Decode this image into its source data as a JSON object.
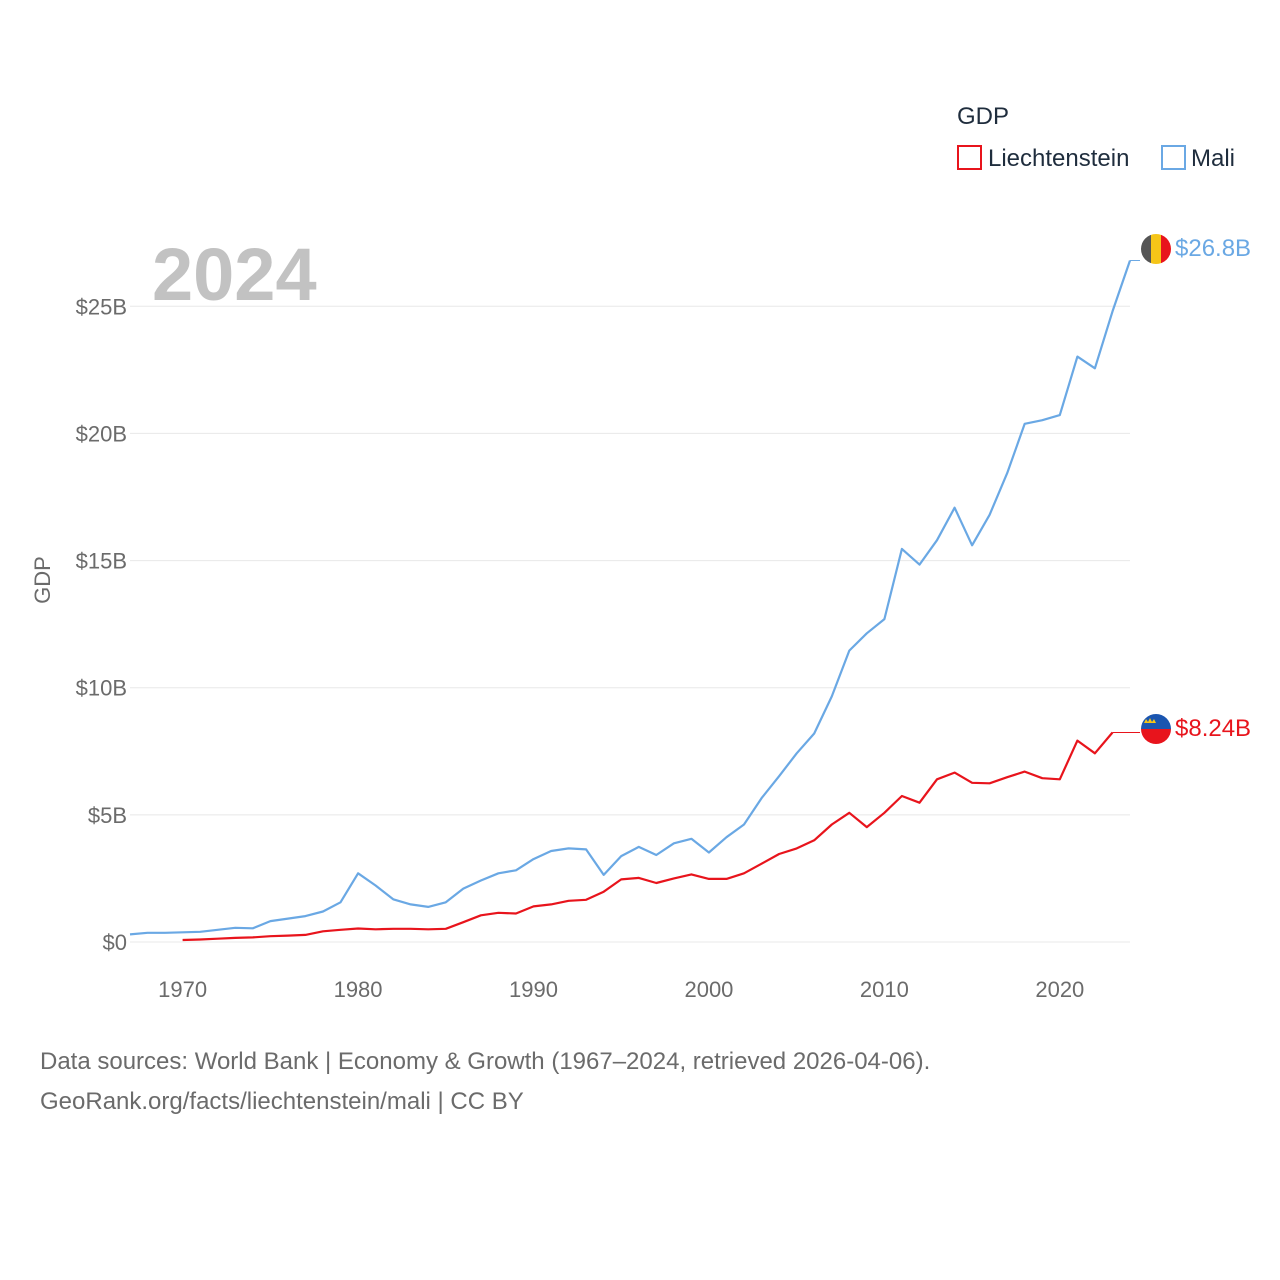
{
  "chart_data": {
    "type": "line",
    "title": "GDP",
    "ylabel": "GDP",
    "xlabel": "",
    "year_label": "2024",
    "xlim": [
      1967,
      2024
    ],
    "ylim": [
      0,
      28000000000
    ],
    "x_ticks": [
      1970,
      1980,
      1990,
      2000,
      2010,
      2020
    ],
    "y_ticks": [
      0,
      5000000000,
      10000000000,
      15000000000,
      20000000000,
      25000000000
    ],
    "y_tick_labels": [
      "$0",
      "$5B",
      "$10B",
      "$15B",
      "$20B",
      "$25B"
    ],
    "grid": true,
    "legend_position": "top-right",
    "series": [
      {
        "name": "Liechtenstein",
        "color": "#e8141c",
        "end_label": "$8.24B",
        "flag": "liechtenstein-flag",
        "x": [
          1970,
          1971,
          1972,
          1973,
          1974,
          1975,
          1976,
          1977,
          1978,
          1979,
          1980,
          1981,
          1982,
          1983,
          1984,
          1985,
          1986,
          1987,
          1988,
          1989,
          1990,
          1991,
          1992,
          1993,
          1994,
          1995,
          1996,
          1997,
          1998,
          1999,
          2000,
          2001,
          2002,
          2003,
          2004,
          2005,
          2006,
          2007,
          2008,
          2009,
          2010,
          2011,
          2012,
          2013,
          2014,
          2015,
          2016,
          2017,
          2018,
          2019,
          2020,
          2021,
          2022,
          2023
        ],
        "values": [
          0.08,
          0.1,
          0.13,
          0.16,
          0.18,
          0.23,
          0.25,
          0.28,
          0.42,
          0.48,
          0.53,
          0.5,
          0.52,
          0.52,
          0.5,
          0.52,
          0.78,
          1.05,
          1.15,
          1.12,
          1.4,
          1.48,
          1.62,
          1.66,
          1.98,
          2.46,
          2.52,
          2.32,
          2.5,
          2.66,
          2.48,
          2.48,
          2.7,
          3.08,
          3.46,
          3.68,
          4.0,
          4.62,
          5.08,
          4.52,
          5.08,
          5.74,
          5.48,
          6.4,
          6.66,
          6.26,
          6.24,
          6.48,
          6.7,
          6.44,
          6.4,
          7.92,
          7.42,
          8.24
        ]
      },
      {
        "name": "Mali",
        "color": "#6aa8e4",
        "end_label": "$26.8B",
        "flag": "mali-flag",
        "x": [
          1967,
          1968,
          1969,
          1970,
          1971,
          1972,
          1973,
          1974,
          1975,
          1976,
          1977,
          1978,
          1979,
          1980,
          1981,
          1982,
          1983,
          1984,
          1985,
          1986,
          1987,
          1988,
          1989,
          1990,
          1991,
          1992,
          1993,
          1994,
          1995,
          1996,
          1997,
          1998,
          1999,
          2000,
          2001,
          2002,
          2003,
          2004,
          2005,
          2006,
          2007,
          2008,
          2009,
          2010,
          2011,
          2012,
          2013,
          2014,
          2015,
          2016,
          2017,
          2018,
          2019,
          2020,
          2021,
          2022,
          2023,
          2024
        ],
        "values": [
          0.3,
          0.36,
          0.36,
          0.38,
          0.4,
          0.48,
          0.56,
          0.54,
          0.82,
          0.92,
          1.02,
          1.2,
          1.56,
          2.7,
          2.22,
          1.68,
          1.48,
          1.38,
          1.56,
          2.1,
          2.42,
          2.7,
          2.82,
          3.26,
          3.58,
          3.68,
          3.64,
          2.64,
          3.38,
          3.74,
          3.42,
          3.88,
          4.06,
          3.52,
          4.12,
          4.62,
          5.66,
          6.52,
          7.42,
          8.2,
          9.66,
          11.46,
          12.14,
          12.7,
          15.46,
          14.84,
          15.8,
          17.08,
          15.6,
          16.8,
          18.44,
          20.38,
          20.52,
          20.72,
          23.02,
          22.56,
          24.8,
          26.8
        ]
      }
    ]
  },
  "value_unit_note": "values in billions USD",
  "footer": {
    "line1": "Data sources: World Bank | Economy & Growth (1967–2024, retrieved 2026-04-06).",
    "line2": "GeoRank.org/facts/liechtenstein/mali | CC BY"
  }
}
